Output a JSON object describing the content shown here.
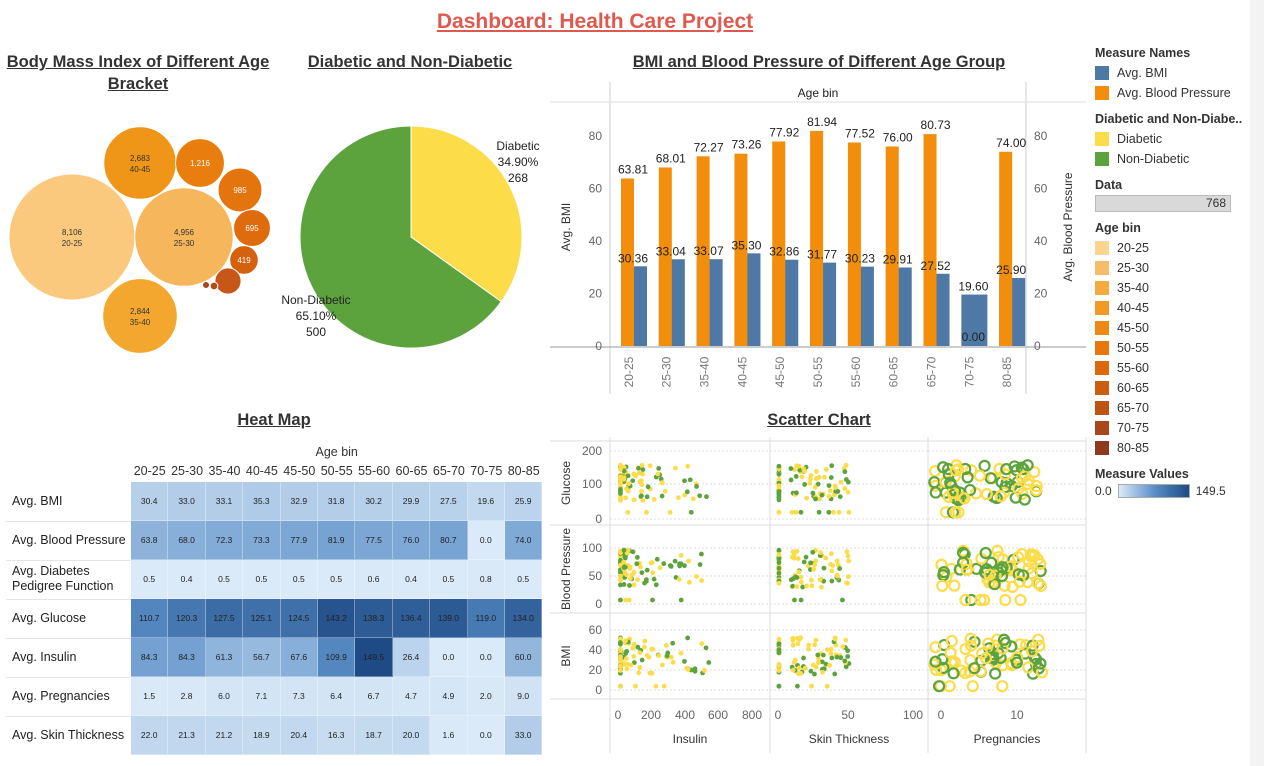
{
  "dashboard_title": "Dashboard: Health Care Project",
  "panels": {
    "bubble_title": "Body Mass Index of Different Age Bracket",
    "pie_title": "Diabetic and Non-Diabetic",
    "bar_title": "BMI and Blood Pressure of Different Age Group",
    "heatmap_title": "Heat Map",
    "scatter_title": "Scatter Chart"
  },
  "legend": {
    "measure_names_header": "Measure Names",
    "measure_names": [
      {
        "label": "Avg. BMI",
        "color": "#4e79a7"
      },
      {
        "label": "Avg. Blood Pressure",
        "color": "#f28e0b"
      }
    ],
    "diabetic_header": "Diabetic and Non-Diabe..",
    "diabetic_items": [
      {
        "label": "Diabetic",
        "color": "#fddc4a"
      },
      {
        "label": "Non-Diabetic",
        "color": "#5ca33e"
      }
    ],
    "data_header": "Data",
    "data_value": "768",
    "age_bin_header": "Age bin",
    "age_bins": [
      {
        "label": "20-25",
        "color": "#fcd38f"
      },
      {
        "label": "25-30",
        "color": "#f7bc6a"
      },
      {
        "label": "35-40",
        "color": "#f5ab40"
      },
      {
        "label": "40-45",
        "color": "#f29a23"
      },
      {
        "label": "45-50",
        "color": "#ef8916"
      },
      {
        "label": "50-55",
        "color": "#e8780e"
      },
      {
        "label": "55-60",
        "color": "#dc6a0c"
      },
      {
        "label": "60-65",
        "color": "#cc5e10"
      },
      {
        "label": "65-70",
        "color": "#bd5414"
      },
      {
        "label": "70-75",
        "color": "#a8471b"
      },
      {
        "label": "80-85",
        "color": "#8d3a1f"
      }
    ],
    "measure_values_header": "Measure Values",
    "measure_values_min": "0.0",
    "measure_values_max": "149.5"
  },
  "chart_data": [
    {
      "type": "bubble",
      "title": "Body Mass Index of Different Age Bracket",
      "bubbles": [
        {
          "label": "8,106",
          "bin": "20-25",
          "value": 8106,
          "color": "#fbc97d"
        },
        {
          "label": "4,956",
          "bin": "25-30",
          "value": 4956,
          "color": "#f5b65c"
        },
        {
          "label": "2,844",
          "bin": "35-40",
          "value": 2844,
          "color": "#f4a72e"
        },
        {
          "label": "2,683",
          "bin": "40-45",
          "value": 2683,
          "color": "#ef9619"
        },
        {
          "label": "1,216",
          "bin": "",
          "value": 1216,
          "color": "#e97d0e"
        },
        {
          "label": "985",
          "bin": "",
          "value": 985,
          "color": "#e4740d"
        },
        {
          "label": "695",
          "bin": "",
          "value": 695,
          "color": "#de6c0d"
        },
        {
          "label": "419",
          "bin": "",
          "value": 419,
          "color": "#d3610e"
        },
        {
          "label": "",
          "bin": "",
          "value": 350,
          "color": "#c65717"
        },
        {
          "label": "",
          "bin": "",
          "value": 30,
          "color": "#b34d18"
        },
        {
          "label": "",
          "bin": "",
          "value": 25,
          "color": "#a8471b"
        }
      ]
    },
    {
      "type": "pie",
      "title": "Diabetic and Non-Diabetic",
      "slices": [
        {
          "name": "Diabetic",
          "percent": "34.90%",
          "count": "268",
          "value": 268,
          "color": "#fddc4a"
        },
        {
          "name": "Non-Diabetic",
          "percent": "65.10%",
          "count": "500",
          "value": 500,
          "color": "#5ca33e"
        }
      ]
    },
    {
      "type": "bar",
      "title": "BMI and Blood Pressure of Different Age Group",
      "header": "Age bin",
      "categories": [
        "20-25",
        "25-30",
        "35-40",
        "40-45",
        "45-50",
        "50-55",
        "55-60",
        "60-65",
        "65-70",
        "70-75",
        "80-85"
      ],
      "series": [
        {
          "name": "Avg. BMI",
          "color": "#4e79a7",
          "values": [
            30.36,
            33.04,
            33.07,
            35.3,
            32.86,
            31.77,
            30.23,
            29.91,
            27.52,
            19.6,
            25.9
          ],
          "labels": [
            "30.36",
            "33.04",
            "33.07",
            "35.30",
            "32.86",
            "31.77",
            "30.23",
            "29.91",
            "27.52",
            "19.60",
            "25.90"
          ]
        },
        {
          "name": "Avg. Blood Pressure",
          "color": "#f28e0b",
          "values": [
            63.81,
            68.01,
            72.27,
            73.26,
            77.92,
            81.94,
            77.52,
            76.0,
            80.73,
            0.0,
            74.0
          ],
          "labels": [
            "63.81",
            "68.01",
            "72.27",
            "73.26",
            "77.92",
            "81.94",
            "77.52",
            "76.00",
            "80.73",
            "0.00",
            "74.00"
          ]
        }
      ],
      "ylabel": "Avg. BMI",
      "y2label": "Avg. Blood Pressure",
      "ylim": [
        0,
        90
      ],
      "yticks": [
        "0",
        "20",
        "40",
        "60",
        "80"
      ]
    },
    {
      "type": "heatmap",
      "title": "Heat Map",
      "header": "Age bin",
      "columns": [
        "20-25",
        "25-30",
        "35-40",
        "40-45",
        "45-50",
        "50-55",
        "55-60",
        "60-65",
        "65-70",
        "70-75",
        "80-85"
      ],
      "rows": [
        {
          "label": "Avg. BMI",
          "values": [
            "30.4",
            "33.0",
            "33.1",
            "35.3",
            "32.9",
            "31.8",
            "30.2",
            "29.9",
            "27.5",
            "19.6",
            "25.9"
          ]
        },
        {
          "label": "Avg. Blood Pressure",
          "values": [
            "63.8",
            "68.0",
            "72.3",
            "73.3",
            "77.9",
            "81.9",
            "77.5",
            "76.0",
            "80.7",
            "0.0",
            "74.0"
          ]
        },
        {
          "label": "Avg. Diabetes Pedigree Function",
          "values": [
            "0.5",
            "0.4",
            "0.5",
            "0.5",
            "0.5",
            "0.5",
            "0.6",
            "0.4",
            "0.5",
            "0.8",
            "0.5"
          ]
        },
        {
          "label": "Avg. Glucose",
          "values": [
            "110.7",
            "120.3",
            "127.5",
            "125.1",
            "124.5",
            "143.2",
            "138.3",
            "136.4",
            "139.0",
            "119.0",
            "134.0"
          ]
        },
        {
          "label": "Avg. Insulin",
          "values": [
            "84.3",
            "84.3",
            "61.3",
            "56.7",
            "67.6",
            "109.9",
            "149.5",
            "26.4",
            "0.0",
            "0.0",
            "60.0"
          ]
        },
        {
          "label": "Avg. Pregnancies",
          "values": [
            "1.5",
            "2.8",
            "6.0",
            "7.1",
            "7.3",
            "6.4",
            "6.7",
            "4.7",
            "4.9",
            "2.0",
            "9.0"
          ]
        },
        {
          "label": "Avg. Skin Thickness",
          "values": [
            "22.0",
            "21.3",
            "21.2",
            "18.9",
            "20.4",
            "16.3",
            "18.7",
            "20.0",
            "1.6",
            "0.0",
            "33.0"
          ]
        }
      ],
      "color_range": [
        0.0,
        149.5
      ]
    },
    {
      "type": "scatter",
      "title": "Scatter Chart",
      "columns": [
        {
          "name": "Insulin",
          "ticks": [
            "0",
            "200",
            "400",
            "600",
            "800"
          ]
        },
        {
          "name": "Skin Thickness",
          "ticks": [
            "0",
            "50",
            "100"
          ]
        },
        {
          "name": "Pregnancies",
          "ticks": [
            "0",
            "10"
          ]
        }
      ],
      "rows": [
        {
          "name": "Glucose",
          "ticks": [
            "0",
            "100",
            "200"
          ]
        },
        {
          "name": "Blood Pressure",
          "ticks": [
            "0",
            "50",
            "100"
          ]
        },
        {
          "name": "BMI",
          "ticks": [
            "0",
            "20",
            "40",
            "60"
          ]
        }
      ],
      "series": [
        {
          "name": "Diabetic",
          "color": "#fddc4a"
        },
        {
          "name": "Non-Diabetic",
          "color": "#5ca33e"
        }
      ]
    }
  ]
}
